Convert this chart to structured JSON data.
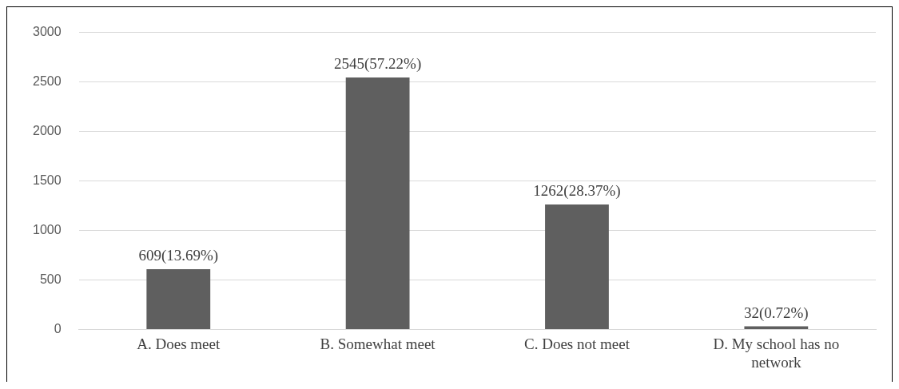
{
  "chart_data": {
    "type": "bar",
    "categories": [
      "A. Does meet",
      "B. Somewhat meet",
      "C. Does not meet",
      "D. My school has no network"
    ],
    "values": [
      609,
      2545,
      1262,
      32
    ],
    "value_labels": [
      "609(13.69%)",
      "2545(57.22%)",
      "1262(28.37%)",
      "32(0.72%)"
    ],
    "color": "#5f5f5f",
    "ylim": [
      0,
      3000
    ],
    "yticks": [
      0,
      500,
      1000,
      1500,
      2000,
      2500,
      3000
    ],
    "grid": "y",
    "legend": false
  }
}
